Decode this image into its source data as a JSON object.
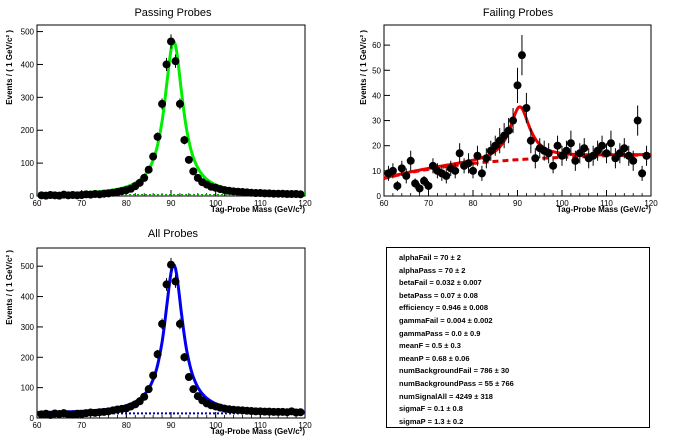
{
  "chart_data": [
    {
      "type": "scatter",
      "title": "Passing Probes",
      "xlabel": "Tag-Probe Mass (GeV/c²)",
      "ylabel": "Events / ( 1 GeV/c² )",
      "xlim": [
        60,
        120
      ],
      "ylim": [
        0,
        520
      ],
      "xticks": [
        "60",
        "70",
        "80",
        "90",
        "100",
        "110",
        "120"
      ],
      "yticks": [
        "0",
        "100",
        "200",
        "300",
        "400",
        "500"
      ],
      "fit_color": "#00ee00",
      "background_color": "#00aa00",
      "signal_peak": 470,
      "background_level": 3,
      "x": [
        61,
        62,
        63,
        64,
        65,
        66,
        67,
        68,
        69,
        70,
        71,
        72,
        73,
        74,
        75,
        76,
        77,
        78,
        79,
        80,
        81,
        82,
        83,
        84,
        85,
        86,
        87,
        88,
        89,
        90,
        91,
        92,
        93,
        94,
        95,
        96,
        97,
        98,
        99,
        100,
        101,
        102,
        103,
        104,
        105,
        106,
        107,
        108,
        109,
        110,
        111,
        112,
        113,
        114,
        115,
        116,
        117,
        118,
        119
      ],
      "y": [
        2,
        1,
        3,
        2,
        1,
        4,
        2,
        3,
        2,
        3,
        5,
        4,
        6,
        5,
        7,
        8,
        10,
        12,
        15,
        18,
        22,
        30,
        40,
        55,
        80,
        120,
        180,
        280,
        400,
        470,
        410,
        280,
        170,
        110,
        75,
        55,
        42,
        35,
        28,
        25,
        21,
        18,
        16,
        14,
        13,
        12,
        11,
        10,
        9,
        9,
        8,
        8,
        7,
        7,
        7,
        6,
        6,
        6,
        5
      ]
    },
    {
      "type": "scatter",
      "title": "Failing Probes",
      "xlabel": "Tag-Probe Mass (GeV/c²)",
      "ylabel": "Events / ( 1 GeV/c² )",
      "xlim": [
        60,
        120
      ],
      "ylim": [
        0,
        68
      ],
      "xticks": [
        "60",
        "70",
        "80",
        "90",
        "100",
        "110",
        "120"
      ],
      "yticks": [
        "0",
        "10",
        "20",
        "30",
        "40",
        "50",
        "60"
      ],
      "fit_color": "#ee0000",
      "background_color": "#dd0000",
      "x": [
        61,
        62,
        63,
        64,
        65,
        66,
        67,
        68,
        69,
        70,
        71,
        72,
        73,
        74,
        75,
        76,
        77,
        78,
        79,
        80,
        81,
        82,
        83,
        84,
        85,
        86,
        87,
        88,
        89,
        90,
        91,
        92,
        93,
        94,
        95,
        96,
        97,
        98,
        99,
        100,
        101,
        102,
        103,
        104,
        105,
        106,
        107,
        108,
        109,
        110,
        111,
        112,
        113,
        114,
        115,
        116,
        117,
        118,
        119
      ],
      "y": [
        9,
        10,
        4,
        11,
        8,
        14,
        5,
        3,
        6,
        4,
        12,
        10,
        9,
        8,
        11,
        10,
        17,
        12,
        13,
        10,
        16,
        9,
        15,
        18,
        20,
        22,
        24,
        26,
        30,
        44,
        56,
        35,
        22,
        15,
        19,
        18,
        17,
        12,
        20,
        16,
        18,
        21,
        14,
        17,
        19,
        15,
        16,
        18,
        20,
        17,
        21,
        15,
        17,
        19,
        16,
        14,
        30,
        9,
        16
      ],
      "yerr": [
        3,
        3,
        2,
        3,
        3,
        4,
        2,
        2,
        2,
        2,
        3,
        3,
        3,
        3,
        3,
        3,
        4,
        3,
        4,
        3,
        4,
        3,
        4,
        4,
        4,
        5,
        5,
        5,
        5,
        7,
        8,
        6,
        5,
        4,
        4,
        4,
        4,
        3,
        4,
        4,
        4,
        5,
        4,
        4,
        4,
        4,
        4,
        4,
        4,
        4,
        5,
        4,
        4,
        4,
        4,
        4,
        6,
        3,
        4
      ]
    },
    {
      "type": "scatter",
      "title": "All Probes",
      "xlabel": "Tag-Probe Mass (GeV/c²)",
      "ylabel": "Events / ( 1 GeV/c² )",
      "xlim": [
        60,
        120
      ],
      "ylim": [
        0,
        560
      ],
      "xticks": [
        "60",
        "70",
        "80",
        "90",
        "100",
        "110",
        "120"
      ],
      "yticks": [
        "0",
        "100",
        "200",
        "300",
        "400",
        "500"
      ],
      "fit_color": "#0000ee",
      "background_color": "#0000aa",
      "signal_peak": 505,
      "background_level": 15,
      "x": [
        61,
        62,
        63,
        64,
        65,
        66,
        67,
        68,
        69,
        70,
        71,
        72,
        73,
        74,
        75,
        76,
        77,
        78,
        79,
        80,
        81,
        82,
        83,
        84,
        85,
        86,
        87,
        88,
        89,
        90,
        91,
        92,
        93,
        94,
        95,
        96,
        97,
        98,
        99,
        100,
        101,
        102,
        103,
        104,
        105,
        106,
        107,
        108,
        109,
        110,
        111,
        112,
        113,
        114,
        115,
        116,
        117,
        118,
        119
      ],
      "y": [
        12,
        14,
        10,
        15,
        13,
        16,
        12,
        11,
        14,
        13,
        16,
        18,
        17,
        19,
        20,
        22,
        25,
        28,
        30,
        32,
        38,
        45,
        55,
        70,
        95,
        140,
        210,
        310,
        440,
        505,
        450,
        310,
        200,
        135,
        95,
        72,
        58,
        48,
        42,
        38,
        34,
        31,
        29,
        27,
        26,
        25,
        24,
        23,
        22,
        22,
        21,
        21,
        20,
        20,
        20,
        19,
        22,
        18,
        19
      ]
    }
  ],
  "params": [
    {
      "name": "alphaFail",
      "value": "70 ± 2"
    },
    {
      "name": "alphaPass",
      "value": "70 ± 2"
    },
    {
      "name": "betaFail",
      "value": "0.032 ± 0.007"
    },
    {
      "name": "betaPass",
      "value": "0.07 ± 0.08"
    },
    {
      "name": "efficiency",
      "value": "0.946 ± 0.008"
    },
    {
      "name": "gammaFail",
      "value": "0.004 ± 0.002"
    },
    {
      "name": "gammaPass",
      "value": "0.0 ± 0.9"
    },
    {
      "name": "meanF",
      "value": "0.5 ± 0.3"
    },
    {
      "name": "meanP",
      "value": "0.68 ± 0.06"
    },
    {
      "name": "numBackgroundFail",
      "value": "786 ± 30"
    },
    {
      "name": "numBackgroundPass",
      "value": "55 ± 766"
    },
    {
      "name": "numSignalAll",
      "value": "4249 ± 318"
    },
    {
      "name": "sigmaF",
      "value": "0.1 ± 0.8"
    },
    {
      "name": "sigmaP",
      "value": "1.3 ± 0.2"
    }
  ]
}
